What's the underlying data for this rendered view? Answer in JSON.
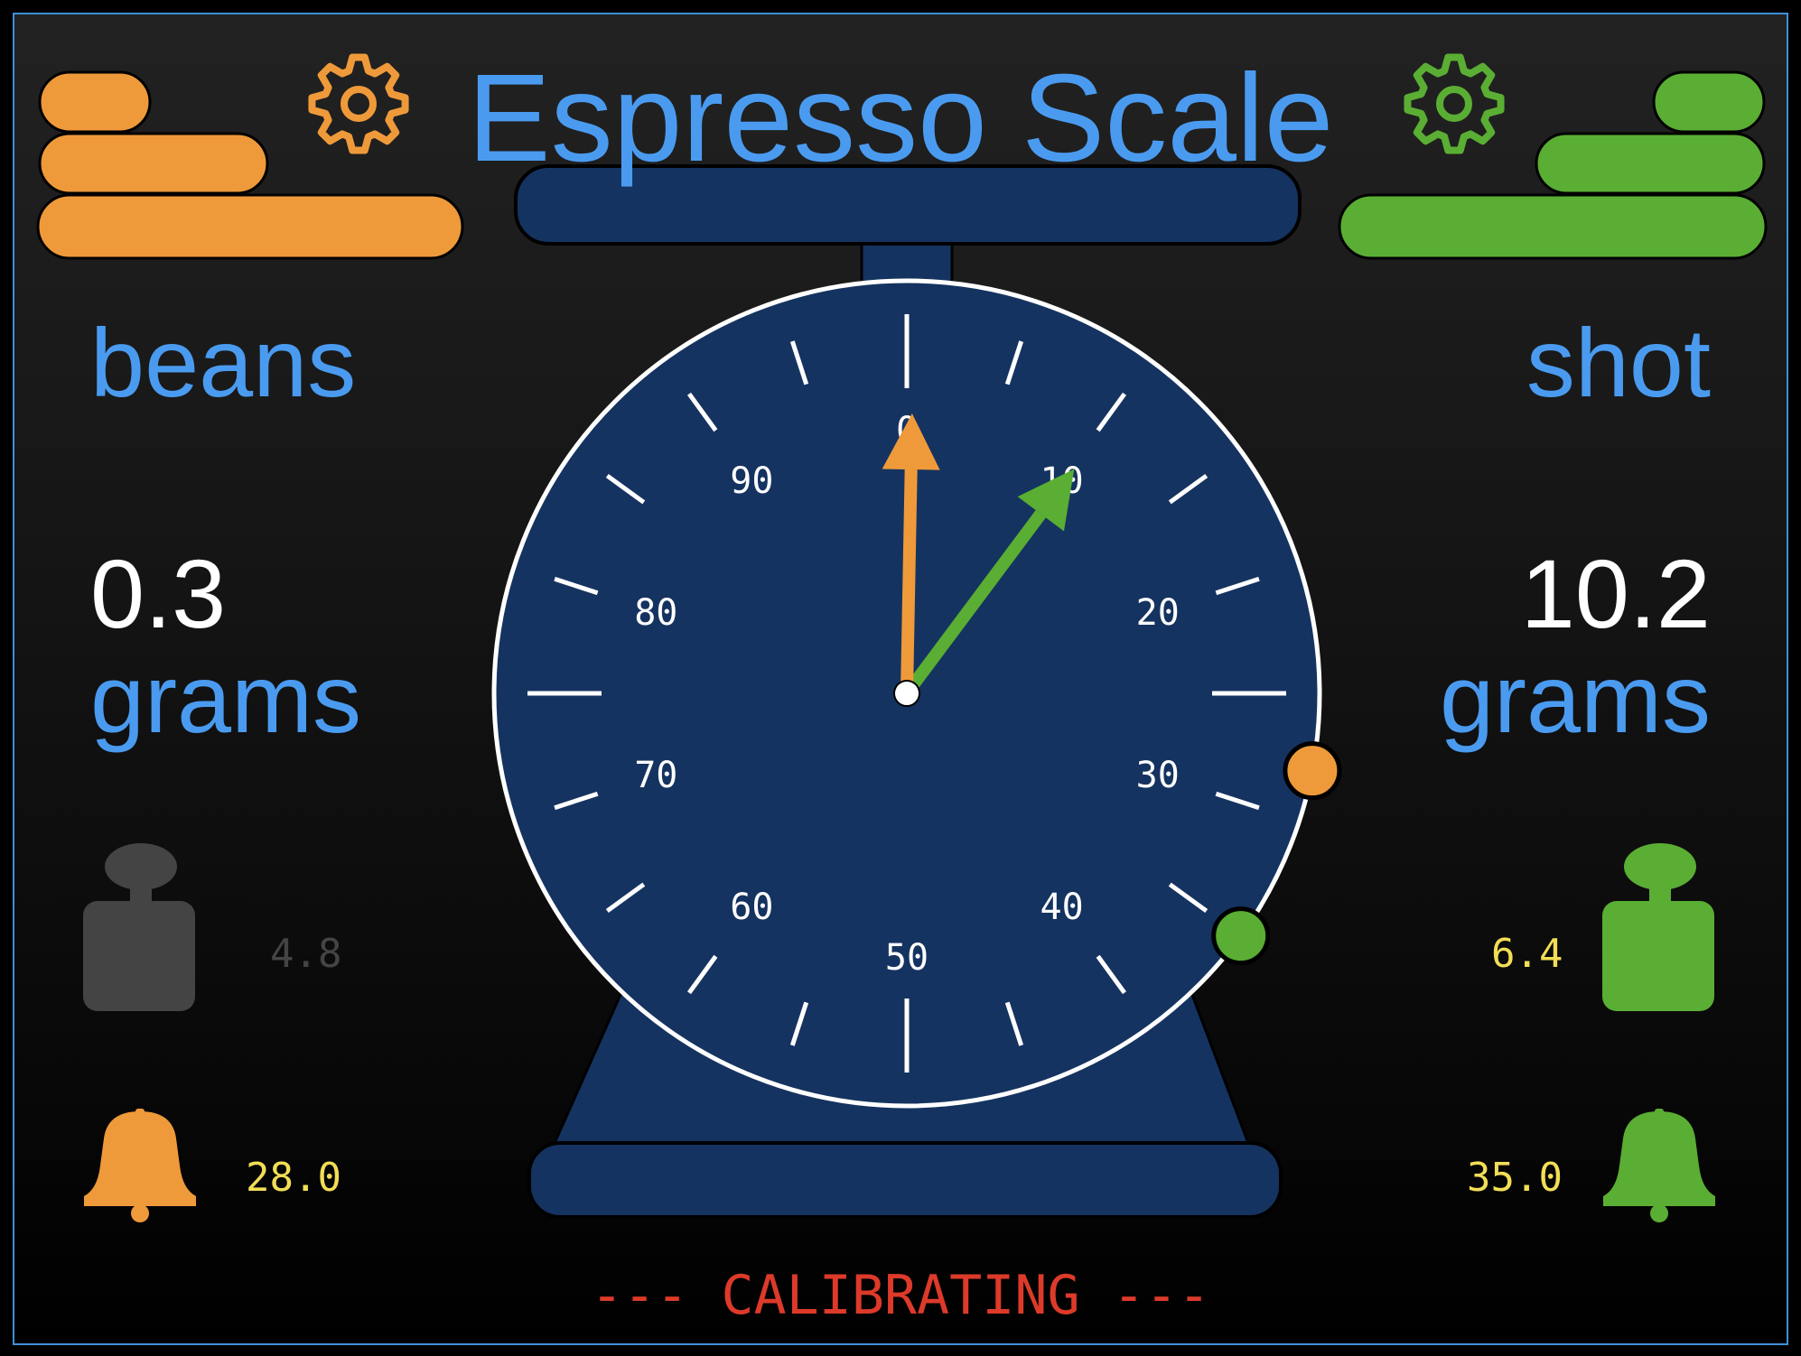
{
  "app": {
    "title": "Espresso Scale",
    "status": "--- CALIBRATING ---"
  },
  "colors": {
    "beans": "#ef9a3a",
    "shot": "#5aae33",
    "accent": "#4a9bf0",
    "dial": "#153360",
    "inactive": "#444444",
    "preset_text": "#f2de55",
    "status": "#dd3a2a"
  },
  "beans": {
    "label": "beans",
    "weight": "0.3",
    "unit": "grams",
    "tare_value": "4.8",
    "alarm_value": "28.0",
    "needle_grams": 0.3,
    "alarm_marker_grams": 28.0,
    "settings_icon": "gear-icon",
    "tare_icon": "weight-icon",
    "alarm_icon": "bell-icon"
  },
  "shot": {
    "label": "shot",
    "weight": "10.2",
    "unit": "grams",
    "tare_value": "6.4",
    "alarm_value": "35.0",
    "needle_grams": 10.2,
    "alarm_marker_grams": 35.0,
    "settings_icon": "gear-icon",
    "tare_icon": "weight-icon",
    "alarm_icon": "bell-icon"
  },
  "dial": {
    "scale_max": 100,
    "labels": [
      "0",
      "10",
      "20",
      "30",
      "40",
      "50",
      "60",
      "70",
      "80",
      "90"
    ]
  }
}
